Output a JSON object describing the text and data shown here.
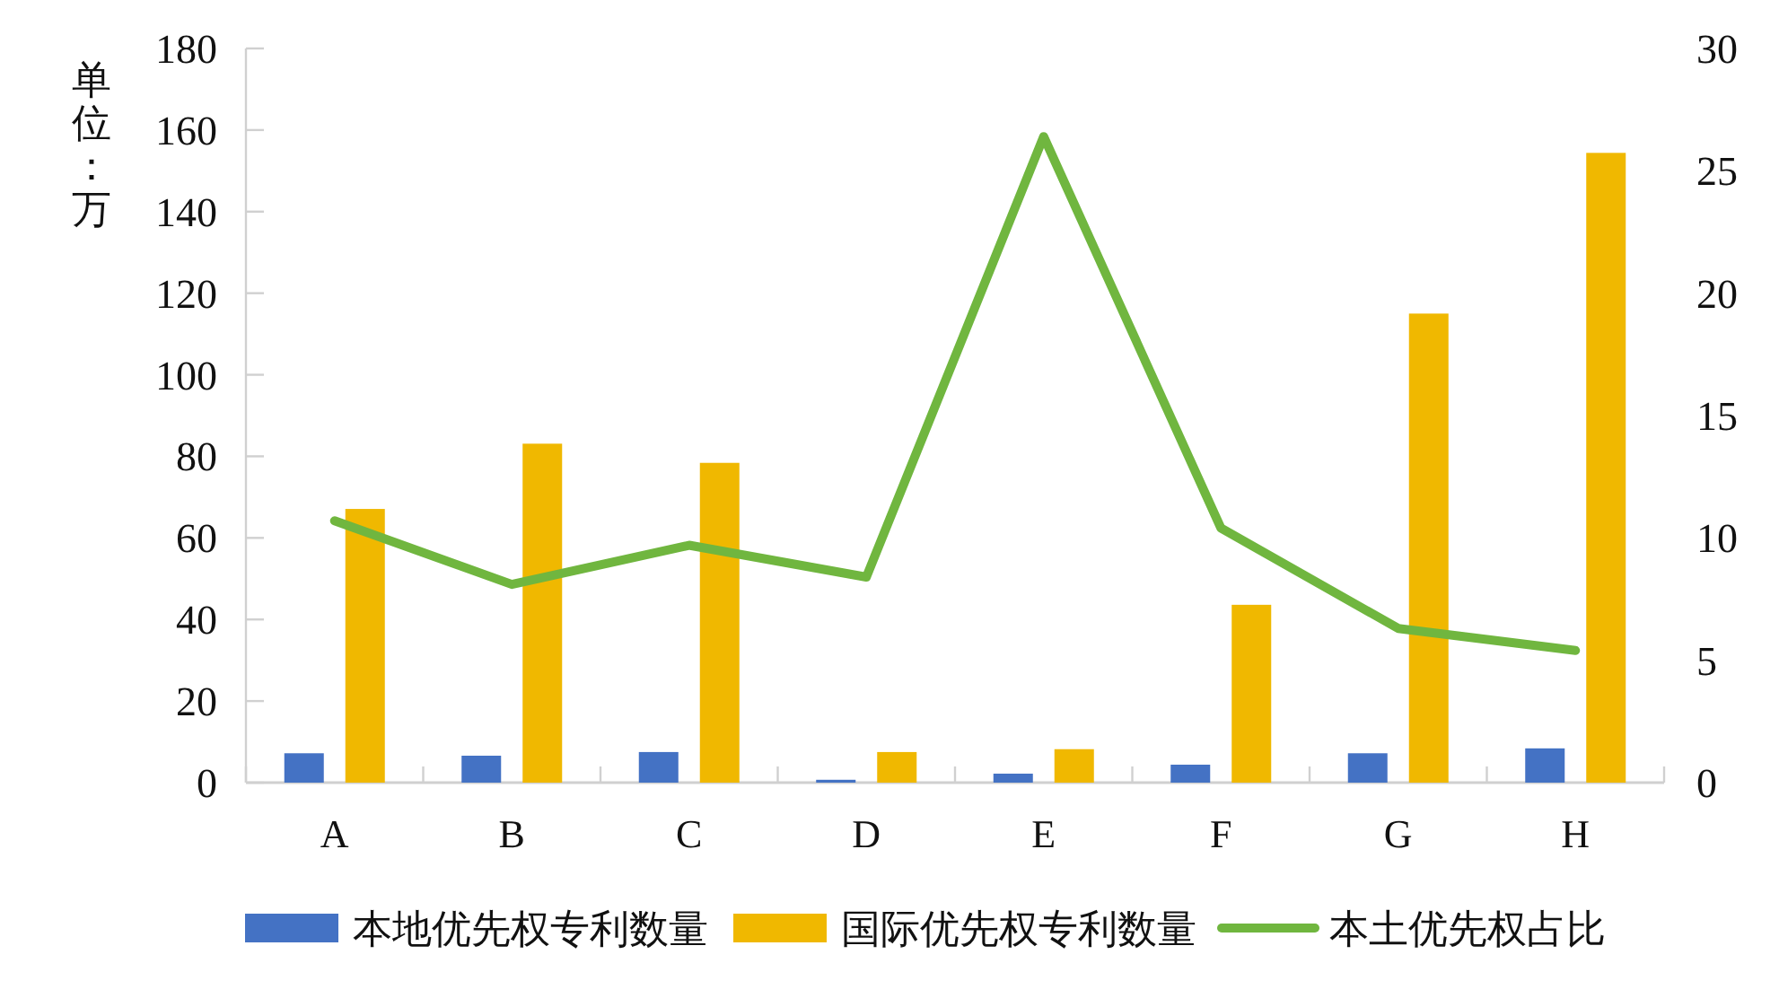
{
  "chart_data": {
    "type": "bar",
    "ylabel": "单位：万",
    "categories": [
      "A",
      "B",
      "C",
      "D",
      "E",
      "F",
      "G",
      "H"
    ],
    "series": [
      {
        "name": "本地优先权专利数量",
        "color": "#4472c4",
        "values": [
          7.2,
          6.6,
          7.5,
          0.7,
          2.2,
          4.4,
          7.2,
          8.4
        ]
      },
      {
        "name": "国际优先权专利数量",
        "color": "#f0b800",
        "values": [
          67.1,
          83.1,
          78.4,
          7.5,
          8.2,
          43.6,
          115.0,
          154.4
        ]
      },
      {
        "name": "本土优先权占比",
        "type": "line",
        "axis": "y2",
        "color": "#70b63f",
        "values": [
          10.7,
          8.1,
          9.7,
          8.4,
          26.4,
          10.4,
          6.3,
          5.4
        ]
      }
    ],
    "ylim": [
      0,
      180
    ],
    "yticks": [
      0,
      20,
      40,
      60,
      80,
      100,
      120,
      140,
      160,
      180
    ],
    "y2lim": [
      0,
      30
    ],
    "y2ticks": [
      0,
      5,
      10,
      15,
      20,
      25,
      30
    ],
    "grid": false,
    "legend": "bottom"
  }
}
